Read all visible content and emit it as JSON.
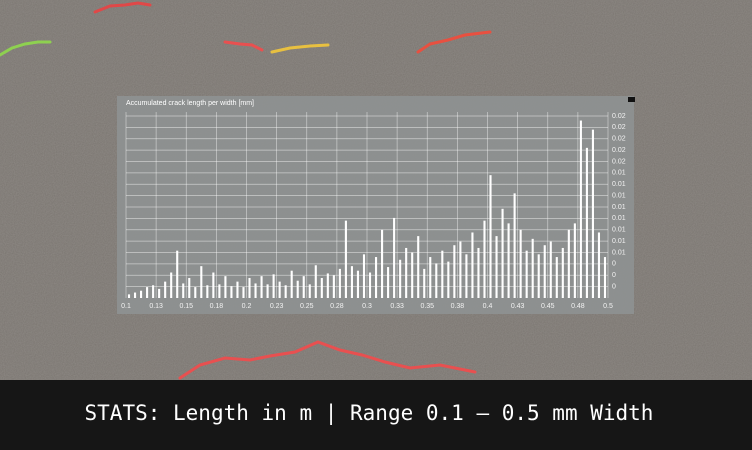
{
  "chart_data": {
    "type": "histogram",
    "title": "Accumulated crack length per width [mm]",
    "bins": [
      0.1,
      0.105,
      0.11,
      0.115,
      0.12,
      0.125,
      0.13,
      0.135,
      0.14,
      0.145,
      0.15,
      0.155,
      0.16,
      0.165,
      0.17,
      0.175,
      0.18,
      0.185,
      0.19,
      0.195,
      0.2,
      0.205,
      0.21,
      0.215,
      0.22,
      0.225,
      0.23,
      0.235,
      0.24,
      0.245,
      0.25,
      0.255,
      0.26,
      0.265,
      0.27,
      0.275,
      0.28,
      0.285,
      0.29,
      0.295,
      0.3,
      0.305,
      0.31,
      0.315,
      0.32,
      0.325,
      0.33,
      0.335,
      0.34,
      0.345,
      0.35,
      0.355,
      0.36,
      0.365,
      0.37,
      0.375,
      0.38,
      0.385,
      0.39,
      0.395,
      0.4,
      0.405,
      0.41,
      0.415,
      0.42,
      0.425,
      0.43,
      0.435,
      0.44,
      0.445,
      0.45,
      0.455,
      0.46,
      0.465,
      0.47,
      0.475,
      0.48,
      0.485,
      0.49,
      0.495,
      0.5
    ],
    "values": [
      0.0004,
      0.0006,
      0.0008,
      0.0012,
      0.0014,
      0.001,
      0.0018,
      0.0028,
      0.0052,
      0.0016,
      0.0022,
      0.0012,
      0.0035,
      0.0014,
      0.0028,
      0.0015,
      0.0024,
      0.0013,
      0.0018,
      0.0012,
      0.0022,
      0.0016,
      0.0024,
      0.0015,
      0.0026,
      0.0018,
      0.0014,
      0.003,
      0.0019,
      0.0024,
      0.0015,
      0.0036,
      0.0022,
      0.0027,
      0.0025,
      0.0032,
      0.0085,
      0.0035,
      0.003,
      0.0048,
      0.0028,
      0.0045,
      0.0075,
      0.0034,
      0.0088,
      0.0042,
      0.0055,
      0.005,
      0.0068,
      0.0032,
      0.0045,
      0.0038,
      0.0052,
      0.004,
      0.0058,
      0.0062,
      0.0048,
      0.0072,
      0.0055,
      0.0085,
      0.0135,
      0.0068,
      0.0098,
      0.0082,
      0.0115,
      0.0075,
      0.0052,
      0.0065,
      0.0048,
      0.0058,
      0.0062,
      0.0045,
      0.0055,
      0.0075,
      0.0082,
      0.0195,
      0.0165,
      0.0185,
      0.0072,
      0.0045
    ],
    "color": "#ffffff",
    "grid": true,
    "xlim": [
      0.1,
      0.5
    ],
    "xticks": [
      0.1,
      {
        "value": 0.125,
        "label": "0.13"
      },
      0.15,
      {
        "value": 0.175,
        "label": "0.18"
      },
      0.2,
      {
        "value": 0.225,
        "label": "0.23"
      },
      0.25,
      {
        "value": 0.275,
        "label": "0.28"
      },
      0.3,
      {
        "value": 0.325,
        "label": "0.33"
      },
      0.35,
      {
        "value": 0.375,
        "label": "0.38"
      },
      0.4,
      {
        "value": 0.425,
        "label": "0.43"
      },
      0.45,
      {
        "value": 0.475,
        "label": "0.48"
      },
      0.5
    ],
    "ylim": [
      0,
      0.02
    ],
    "yticks": [
      {
        "value": 0.00125,
        "label": "0"
      },
      {
        "value": 0.0025,
        "label": "0"
      },
      {
        "value": 0.00375,
        "label": "0"
      },
      {
        "value": 0.005,
        "label": "0.01"
      },
      {
        "value": 0.00625,
        "label": "0.01"
      },
      {
        "value": 0.0075,
        "label": "0.01"
      },
      {
        "value": 0.00875,
        "label": "0.01"
      },
      0.01,
      {
        "value": 0.01125,
        "label": "0.01"
      },
      {
        "value": 0.0125,
        "label": "0.01"
      },
      {
        "value": 0.01375,
        "label": "0.01"
      },
      {
        "value": 0.015,
        "label": "0.02"
      },
      {
        "value": 0.01625,
        "label": "0.02"
      },
      {
        "value": 0.0175,
        "label": "0.02"
      },
      {
        "value": 0.01875,
        "label": "0.02"
      },
      0.02
    ]
  },
  "caption": "STATS: Length in m | Range 0.1 – 0.5 mm Width"
}
